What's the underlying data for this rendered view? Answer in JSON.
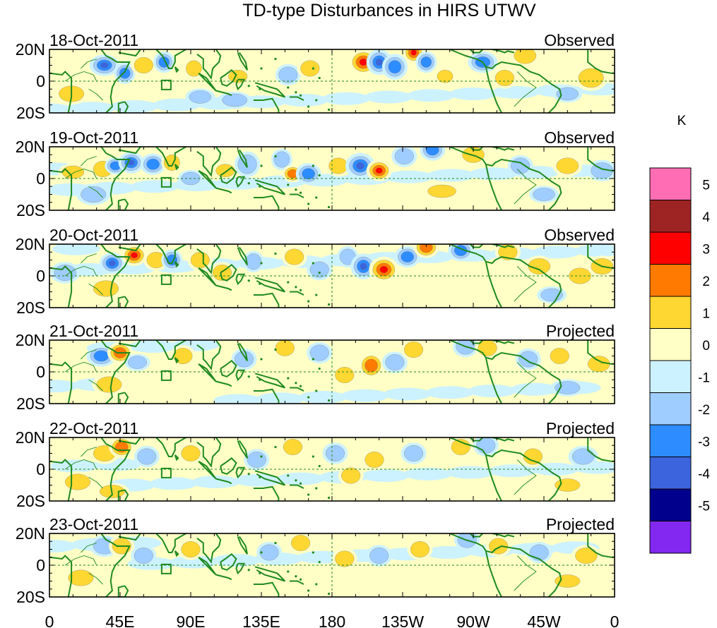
{
  "chart_data": {
    "type": "heatmap",
    "title": "TD-type Disturbances in HIRS UTWV",
    "units": "K",
    "colorbar": {
      "labels": [
        "5",
        "4",
        "3",
        "2",
        "1",
        "0",
        "-1",
        "-2",
        "-3",
        "-4",
        "-5"
      ],
      "colors": [
        "#ff6eb4",
        "#9e2323",
        "#ff0000",
        "#ff7a00",
        "#ffd732",
        "#ffffc6",
        "#cdf2ff",
        "#a0cdff",
        "#2d8cff",
        "#3c64dc",
        "#00008c",
        "#8228f0"
      ]
    },
    "x_ticks": [
      "0",
      "45E",
      "90E",
      "135E",
      "180",
      "135W",
      "90W",
      "45W",
      "0"
    ],
    "x_range_deg_east": [
      0,
      360
    ],
    "y_ticks": [
      "20N",
      "0",
      "20S"
    ],
    "y_range_deg": [
      -20,
      20
    ],
    "panels": [
      {
        "date": "18-Oct-2011",
        "status": "Observed",
        "blobs": [
          [
            35,
            10,
            7,
            5,
            -3
          ],
          [
            48,
            5,
            5,
            5,
            -2
          ],
          [
            60,
            10,
            6,
            5,
            1
          ],
          [
            73,
            12,
            5,
            5,
            -2
          ],
          [
            92,
            8,
            5,
            5,
            1
          ],
          [
            120,
            3,
            6,
            4,
            1
          ],
          [
            152,
            4,
            6,
            5,
            -1
          ],
          [
            166,
            8,
            6,
            5,
            1
          ],
          [
            200,
            12,
            7,
            6,
            3
          ],
          [
            210,
            12,
            6,
            6,
            -3
          ],
          [
            220,
            9,
            6,
            6,
            -2
          ],
          [
            232,
            18,
            5,
            5,
            3
          ],
          [
            240,
            12,
            5,
            5,
            -2
          ],
          [
            252,
            3,
            5,
            4,
            1
          ],
          [
            276,
            12,
            7,
            5,
            -2
          ],
          [
            290,
            2,
            6,
            5,
            1
          ],
          [
            303,
            16,
            7,
            5,
            1
          ],
          [
            345,
            2,
            8,
            6,
            1
          ],
          [
            330,
            -8,
            7,
            4,
            -1
          ],
          [
            96,
            -10,
            7,
            4,
            -1
          ],
          [
            14,
            -8,
            8,
            5,
            1
          ],
          [
            118,
            -12,
            8,
            4,
            -1
          ]
        ]
      },
      {
        "date": "19-Oct-2011",
        "status": "Observed",
        "blobs": [
          [
            15,
            4,
            7,
            4,
            1
          ],
          [
            34,
            6,
            6,
            5,
            1
          ],
          [
            42,
            8,
            5,
            4,
            -2
          ],
          [
            52,
            10,
            6,
            5,
            -3
          ],
          [
            66,
            9,
            6,
            5,
            -2
          ],
          [
            78,
            10,
            5,
            5,
            1
          ],
          [
            90,
            0,
            6,
            4,
            -1
          ],
          [
            112,
            5,
            6,
            4,
            1
          ],
          [
            126,
            9,
            6,
            6,
            -1
          ],
          [
            148,
            12,
            5,
            5,
            -1
          ],
          [
            155,
            3,
            5,
            4,
            2
          ],
          [
            165,
            3,
            6,
            5,
            -2
          ],
          [
            184,
            8,
            6,
            5,
            1
          ],
          [
            198,
            8,
            7,
            6,
            -3
          ],
          [
            210,
            5,
            6,
            5,
            3
          ],
          [
            226,
            14,
            6,
            5,
            -1
          ],
          [
            244,
            18,
            6,
            5,
            -2
          ],
          [
            270,
            15,
            7,
            5,
            1
          ],
          [
            300,
            8,
            6,
            5,
            -1
          ],
          [
            330,
            8,
            7,
            5,
            1
          ],
          [
            352,
            5,
            7,
            5,
            -1
          ],
          [
            28,
            -10,
            8,
            5,
            -1
          ],
          [
            315,
            -10,
            7,
            4,
            -1
          ],
          [
            250,
            -8,
            9,
            4,
            1
          ]
        ]
      },
      {
        "date": "20-Oct-2011",
        "status": "Observed",
        "blobs": [
          [
            10,
            2,
            7,
            5,
            -1
          ],
          [
            40,
            8,
            6,
            5,
            -3
          ],
          [
            54,
            13,
            6,
            5,
            3
          ],
          [
            68,
            10,
            6,
            5,
            1
          ],
          [
            78,
            10,
            5,
            5,
            -2
          ],
          [
            96,
            10,
            6,
            5,
            1
          ],
          [
            110,
            2,
            6,
            5,
            1
          ],
          [
            130,
            9,
            5,
            5,
            -1
          ],
          [
            156,
            12,
            6,
            5,
            1
          ],
          [
            172,
            4,
            6,
            5,
            -1
          ],
          [
            190,
            12,
            5,
            5,
            -1
          ],
          [
            200,
            6,
            6,
            6,
            -3
          ],
          [
            213,
            4,
            7,
            6,
            3
          ],
          [
            228,
            12,
            6,
            5,
            -2
          ],
          [
            240,
            18,
            6,
            5,
            2
          ],
          [
            262,
            16,
            6,
            5,
            -2
          ],
          [
            292,
            15,
            6,
            5,
            1
          ],
          [
            312,
            6,
            7,
            5,
            1
          ],
          [
            338,
            0,
            7,
            5,
            1
          ],
          [
            352,
            6,
            7,
            5,
            1
          ],
          [
            36,
            -8,
            8,
            5,
            1
          ],
          [
            320,
            -12,
            7,
            4,
            -1
          ]
        ]
      },
      {
        "date": "21-Oct-2011",
        "status": "Projected",
        "blobs": [
          [
            33,
            10,
            7,
            5,
            -2
          ],
          [
            45,
            12,
            6,
            5,
            2
          ],
          [
            56,
            6,
            6,
            4,
            -1
          ],
          [
            85,
            10,
            6,
            5,
            1
          ],
          [
            124,
            8,
            6,
            5,
            -1
          ],
          [
            150,
            15,
            6,
            5,
            1
          ],
          [
            172,
            12,
            6,
            5,
            -1
          ],
          [
            188,
            -2,
            6,
            5,
            1
          ],
          [
            205,
            4,
            6,
            6,
            2
          ],
          [
            220,
            6,
            6,
            5,
            -1
          ],
          [
            232,
            14,
            6,
            5,
            1
          ],
          [
            265,
            16,
            6,
            5,
            -1
          ],
          [
            279,
            15,
            6,
            5,
            1
          ],
          [
            305,
            8,
            6,
            5,
            -1
          ],
          [
            325,
            10,
            6,
            5,
            1
          ],
          [
            350,
            5,
            7,
            5,
            1
          ],
          [
            38,
            -8,
            8,
            5,
            1
          ],
          [
            330,
            -10,
            8,
            4,
            -1
          ]
        ]
      },
      {
        "date": "22-Oct-2011",
        "status": "Projected",
        "blobs": [
          [
            35,
            10,
            7,
            5,
            1
          ],
          [
            46,
            14,
            6,
            5,
            2
          ],
          [
            62,
            8,
            6,
            5,
            -1
          ],
          [
            90,
            10,
            6,
            5,
            1
          ],
          [
            132,
            6,
            6,
            5,
            -1
          ],
          [
            155,
            14,
            6,
            5,
            1
          ],
          [
            182,
            10,
            6,
            5,
            -1
          ],
          [
            192,
            -4,
            6,
            5,
            1
          ],
          [
            207,
            6,
            6,
            5,
            1
          ],
          [
            232,
            10,
            6,
            5,
            -1
          ],
          [
            262,
            14,
            6,
            5,
            1
          ],
          [
            278,
            15,
            6,
            5,
            -1
          ],
          [
            308,
            8,
            6,
            5,
            1
          ],
          [
            340,
            8,
            7,
            5,
            -1
          ],
          [
            18,
            -8,
            8,
            5,
            1
          ],
          [
            40,
            -14,
            8,
            4,
            1
          ],
          [
            330,
            -10,
            8,
            4,
            1
          ]
        ]
      },
      {
        "date": "23-Oct-2011",
        "status": "Projected",
        "blobs": [
          [
            35,
            12,
            7,
            5,
            -1
          ],
          [
            46,
            12,
            6,
            5,
            1
          ],
          [
            60,
            6,
            6,
            5,
            -1
          ],
          [
            90,
            10,
            6,
            5,
            1
          ],
          [
            140,
            8,
            6,
            5,
            -1
          ],
          [
            160,
            14,
            6,
            5,
            1
          ],
          [
            188,
            4,
            6,
            5,
            1
          ],
          [
            210,
            6,
            6,
            5,
            -1
          ],
          [
            236,
            10,
            6,
            5,
            1
          ],
          [
            266,
            16,
            6,
            5,
            -1
          ],
          [
            286,
            12,
            6,
            5,
            1
          ],
          [
            312,
            8,
            6,
            5,
            -1
          ],
          [
            342,
            6,
            7,
            5,
            1
          ],
          [
            20,
            -8,
            8,
            5,
            1
          ],
          [
            330,
            -10,
            8,
            4,
            1
          ]
        ]
      }
    ]
  }
}
